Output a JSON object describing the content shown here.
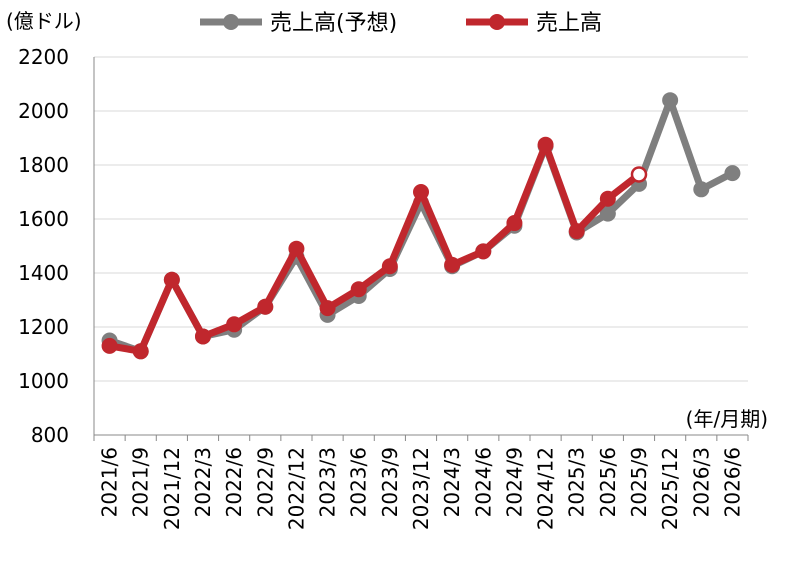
{
  "chart_data": {
    "type": "line",
    "title": "",
    "ylabel": "(億ドル)",
    "xlabel": "(年/月期)",
    "ylim": [
      800,
      2200
    ],
    "yticks": [
      800,
      1000,
      1200,
      1400,
      1600,
      1800,
      2000,
      2200
    ],
    "grid": true,
    "legend_position": "top",
    "categories": [
      "2021/6",
      "2021/9",
      "2021/12",
      "2022/3",
      "2022/6",
      "2022/9",
      "2022/12",
      "2023/3",
      "2023/6",
      "2023/9",
      "2023/12",
      "2024/3",
      "2024/6",
      "2024/9",
      "2024/12",
      "2025/3",
      "2025/6",
      "2025/9",
      "2025/12",
      "2026/3",
      "2026/6"
    ],
    "series": [
      {
        "name": "売上高(予想)",
        "color": "#7f7f7f",
        "values": [
          1150,
          1110,
          1375,
          1165,
          1190,
          1275,
          1460,
          1245,
          1315,
          1415,
          1660,
          1425,
          1480,
          1575,
          1870,
          1550,
          1620,
          1730,
          2040,
          1710,
          1770
        ]
      },
      {
        "name": "売上高",
        "color": "#c0272d",
        "values": [
          1130,
          1110,
          1375,
          1165,
          1210,
          1275,
          1490,
          1270,
          1340,
          1425,
          1700,
          1430,
          1480,
          1585,
          1875,
          1555,
          1675,
          1765,
          null,
          null,
          null
        ],
        "hollow_last_point": true
      }
    ]
  }
}
